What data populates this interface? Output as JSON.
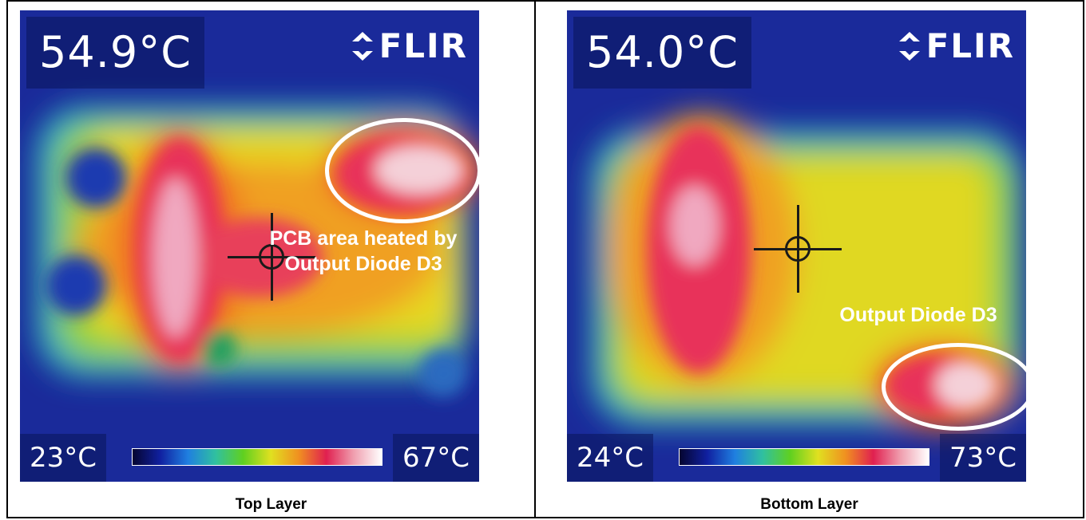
{
  "panels": [
    {
      "temperature": "54.9°C",
      "logo": "FLIR",
      "scale_min": "23°C",
      "scale_max": "67°C",
      "annotation_line1": "PCB area heated by",
      "annotation_line2": "Output Diode D3",
      "caption": "Top Layer"
    },
    {
      "temperature": "54.0°C",
      "logo": "FLIR",
      "scale_min": "24°C",
      "scale_max": "73°C",
      "annotation_line1": "Output Diode D3",
      "caption": "Bottom Layer"
    }
  ],
  "colors": {
    "border": "#000000",
    "annotation": "#ffffff"
  }
}
